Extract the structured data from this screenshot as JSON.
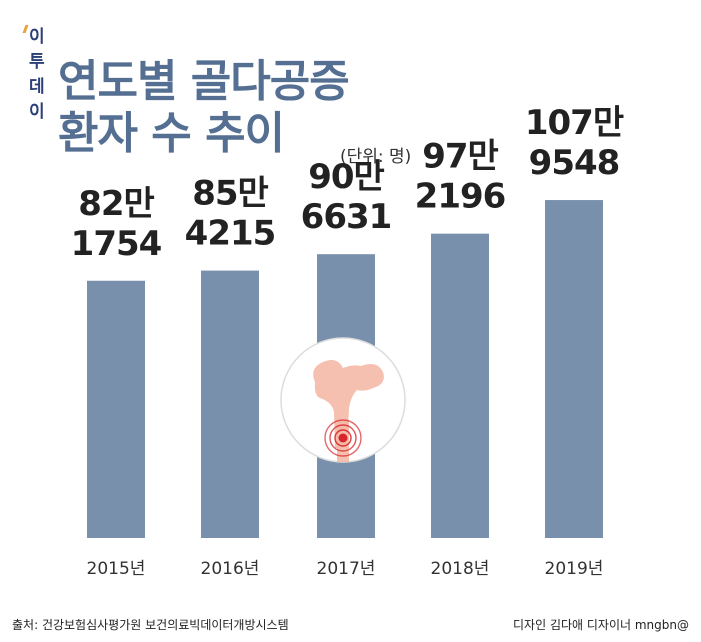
{
  "header": {
    "logo": "이투데이",
    "title_line1": "연도별 골다공증",
    "title_line2": "환자 수 추이",
    "unit": "(단위: 명)"
  },
  "footer": {
    "source": "출처: 건강보험심사평가원 보건의료빅데이터개방시스템",
    "credit": "디자인 김다애 디자이너 mngbn@"
  },
  "colors": {
    "bar": "#7890ab",
    "title": "#556f93",
    "value_text": "#222222",
    "axis_label": "#333333",
    "bone": "#f4b9a6",
    "marker": "#d8262b"
  },
  "chart_data": {
    "type": "bar",
    "categories": [
      "2015년",
      "2016년",
      "2017년",
      "2018년",
      "2019년"
    ],
    "values": [
      821754,
      854215,
      906631,
      972196,
      1079548
    ],
    "value_labels": [
      [
        "82만",
        "1754"
      ],
      [
        "85만",
        "4215"
      ],
      [
        "90만",
        "6631"
      ],
      [
        "97만",
        "2196"
      ],
      [
        "107만",
        "9548"
      ]
    ],
    "ylim": [
      0,
      1150000
    ],
    "grid": false,
    "legend": "none"
  },
  "decoration": {
    "icon": "bone-fracture-icon"
  }
}
